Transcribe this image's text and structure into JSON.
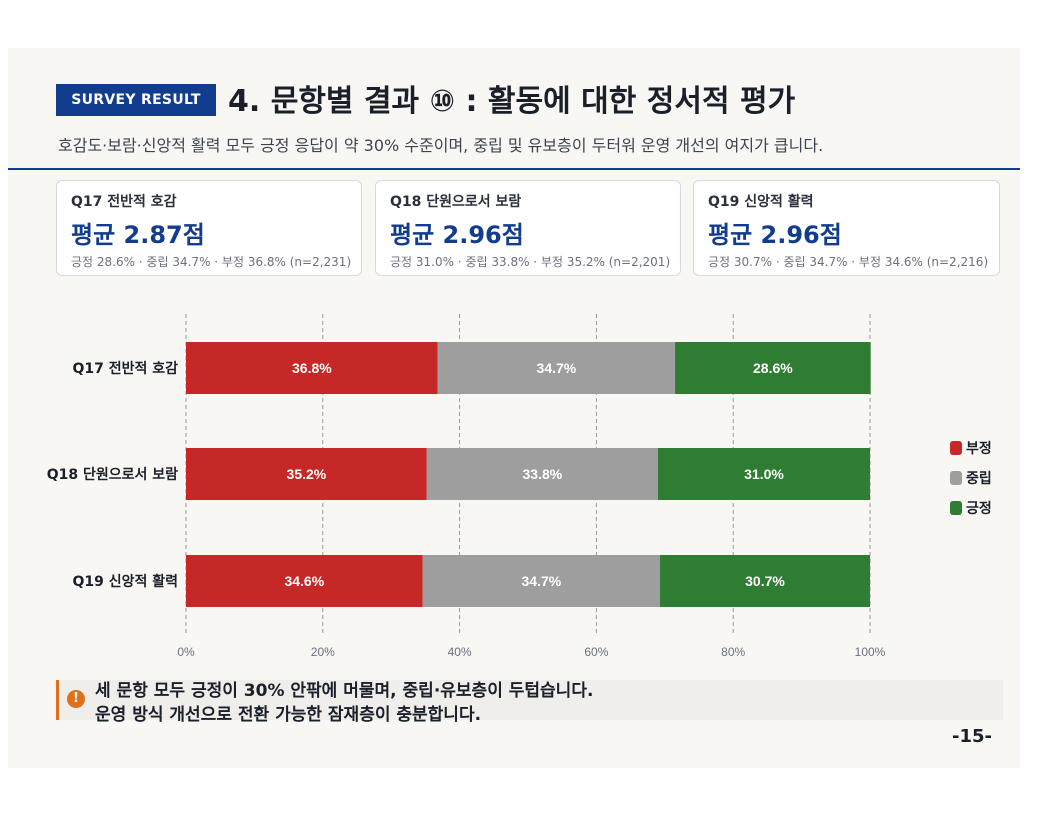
{
  "header": {
    "badge": "SURVEY RESULT",
    "title": "4. 문항별 결과 ⑩ : 활동에 대한 정서적 평가",
    "subtitle": "호감도·보람·신앙적 활력 모두 긍정 응답이 약 30% 수준이며, 중립 및 유보층이 두터워 운영 개선의 여지가 큽니다."
  },
  "cards": [
    {
      "question": "Q17 전반적 호감",
      "average": "평균 2.87점",
      "distribution": "긍정 28.6% · 중립 34.7% · 부정 36.8% (n=2,231)"
    },
    {
      "question": "Q18 단원으로서 보람",
      "average": "평균 2.96점",
      "distribution": "긍정 31.0% · 중립 33.8% · 부정 35.2% (n=2,201)"
    },
    {
      "question": "Q19 신앙적 활력",
      "average": "평균 2.96점",
      "distribution": "긍정 30.7% · 중립 34.7% · 부정 34.6% (n=2,216)"
    }
  ],
  "chart_data": {
    "type": "bar",
    "orientation": "horizontal",
    "stacked": true,
    "categories": [
      "Q17 전반적 호감",
      "Q18 단원으로서 보람",
      "Q19 신앙적 활력"
    ],
    "series": [
      {
        "name": "부정",
        "color": "#c62828",
        "values": [
          36.8,
          35.2,
          34.6
        ]
      },
      {
        "name": "중립",
        "color": "#9e9e9e",
        "values": [
          34.7,
          33.8,
          34.7
        ]
      },
      {
        "name": "긍정",
        "color": "#2e7d32",
        "values": [
          28.6,
          31.0,
          30.7
        ]
      }
    ],
    "data_labels": [
      [
        "36.8%",
        "34.7%",
        "28.6%"
      ],
      [
        "35.2%",
        "33.8%",
        "31.0%"
      ],
      [
        "34.6%",
        "34.7%",
        "30.7%"
      ]
    ],
    "xticks": [
      "0%",
      "20%",
      "40%",
      "60%",
      "80%",
      "100%"
    ],
    "xlim": [
      0,
      100
    ],
    "grid": "vertical dashed",
    "legend": "right"
  },
  "callout": {
    "icon": "exclamation-icon",
    "line1": "세 문항 모두 긍정이 30% 안팎에 머물며, 중립·유보층이 두텁습니다.",
    "line2": "운영 방식 개선으로 전환 가능한 잠재층이 충분합니다."
  },
  "page_number": "-15-",
  "colors": {
    "accent": "#123c8e",
    "warning": "#e0701a"
  }
}
